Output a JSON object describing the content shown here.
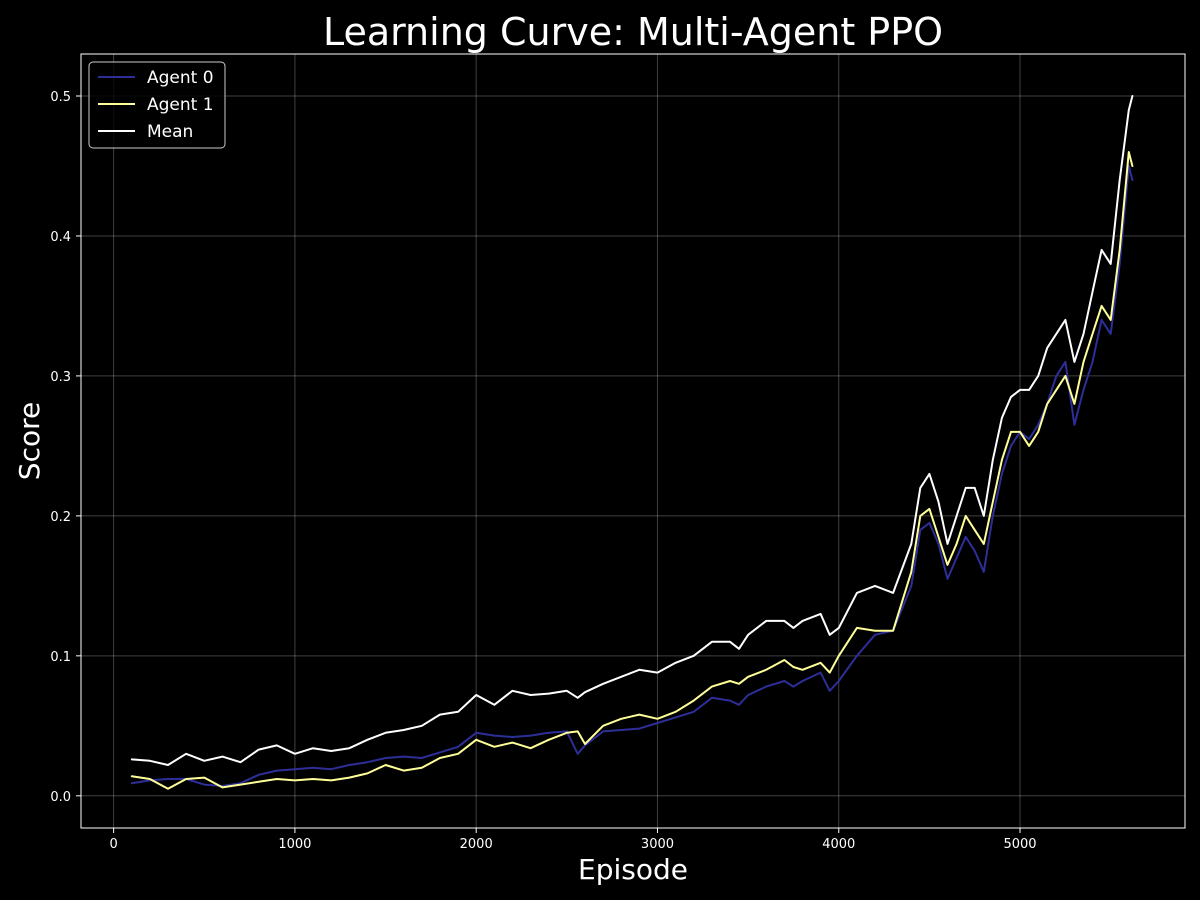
{
  "chart_data": {
    "type": "line",
    "title": "Learning Curve: Multi-Agent PPO",
    "xlabel": "Episode",
    "ylabel": "Score",
    "xlim": [
      -180,
      5910
    ],
    "ylim": [
      -0.023,
      0.53
    ],
    "xticks": [
      0,
      1000,
      2000,
      3000,
      4000,
      5000
    ],
    "xtick_labels": [
      "0",
      "1000",
      "2000",
      "3000",
      "4000",
      "5000"
    ],
    "yticks": [
      0.0,
      0.1,
      0.2,
      0.3,
      0.4,
      0.5
    ],
    "ytick_labels": [
      "0.0",
      "0.1",
      "0.2",
      "0.3",
      "0.4",
      "0.5"
    ],
    "grid": true,
    "legend_position": "top-left",
    "background": "#000000",
    "series": [
      {
        "name": "Agent 0",
        "color": "#2e2e99",
        "x": [
          100,
          200,
          300,
          400,
          500,
          600,
          700,
          800,
          900,
          1000,
          1100,
          1200,
          1300,
          1400,
          1500,
          1600,
          1700,
          1800,
          1900,
          2000,
          2100,
          2200,
          2300,
          2400,
          2500,
          2560,
          2600,
          2700,
          2800,
          2900,
          3000,
          3100,
          3200,
          3300,
          3400,
          3450,
          3500,
          3600,
          3700,
          3750,
          3800,
          3900,
          3950,
          4000,
          4100,
          4200,
          4300,
          4400,
          4450,
          4500,
          4550,
          4600,
          4650,
          4700,
          4750,
          4800,
          4850,
          4900,
          4950,
          5000,
          5050,
          5100,
          5150,
          5200,
          5250,
          5300,
          5350,
          5400,
          5450,
          5500,
          5550,
          5600,
          5620
        ],
        "y": [
          0.009,
          0.011,
          0.012,
          0.012,
          0.008,
          0.007,
          0.009,
          0.015,
          0.018,
          0.019,
          0.02,
          0.019,
          0.022,
          0.024,
          0.027,
          0.028,
          0.027,
          0.031,
          0.035,
          0.045,
          0.043,
          0.042,
          0.043,
          0.045,
          0.046,
          0.03,
          0.036,
          0.046,
          0.047,
          0.048,
          0.052,
          0.056,
          0.06,
          0.07,
          0.068,
          0.065,
          0.072,
          0.078,
          0.082,
          0.078,
          0.082,
          0.088,
          0.075,
          0.082,
          0.1,
          0.115,
          0.118,
          0.15,
          0.19,
          0.195,
          0.18,
          0.155,
          0.17,
          0.185,
          0.175,
          0.16,
          0.2,
          0.23,
          0.25,
          0.26,
          0.255,
          0.265,
          0.28,
          0.3,
          0.31,
          0.265,
          0.29,
          0.31,
          0.34,
          0.33,
          0.38,
          0.45,
          0.44
        ]
      },
      {
        "name": "Agent 1",
        "color": "#ffff99",
        "x": [
          100,
          200,
          300,
          400,
          500,
          600,
          700,
          800,
          900,
          1000,
          1100,
          1200,
          1300,
          1400,
          1500,
          1600,
          1700,
          1800,
          1900,
          2000,
          2100,
          2200,
          2300,
          2400,
          2500,
          2560,
          2600,
          2700,
          2800,
          2900,
          3000,
          3100,
          3200,
          3300,
          3400,
          3450,
          3500,
          3600,
          3700,
          3750,
          3800,
          3900,
          3950,
          4000,
          4100,
          4200,
          4300,
          4400,
          4450,
          4500,
          4550,
          4600,
          4650,
          4700,
          4750,
          4800,
          4850,
          4900,
          4950,
          5000,
          5050,
          5100,
          5150,
          5200,
          5250,
          5300,
          5350,
          5400,
          5450,
          5500,
          5550,
          5600,
          5620
        ],
        "y": [
          0.014,
          0.012,
          0.005,
          0.012,
          0.013,
          0.006,
          0.008,
          0.01,
          0.012,
          0.011,
          0.012,
          0.011,
          0.013,
          0.016,
          0.022,
          0.018,
          0.02,
          0.027,
          0.03,
          0.04,
          0.035,
          0.038,
          0.034,
          0.04,
          0.045,
          0.046,
          0.037,
          0.05,
          0.055,
          0.058,
          0.055,
          0.06,
          0.068,
          0.078,
          0.082,
          0.08,
          0.085,
          0.09,
          0.097,
          0.092,
          0.09,
          0.095,
          0.088,
          0.1,
          0.12,
          0.118,
          0.118,
          0.16,
          0.2,
          0.205,
          0.185,
          0.165,
          0.18,
          0.2,
          0.19,
          0.18,
          0.21,
          0.24,
          0.26,
          0.26,
          0.25,
          0.26,
          0.28,
          0.29,
          0.3,
          0.28,
          0.31,
          0.33,
          0.35,
          0.34,
          0.39,
          0.46,
          0.45
        ]
      },
      {
        "name": "Mean",
        "color": "#ffffff",
        "x": [
          100,
          200,
          300,
          400,
          500,
          600,
          700,
          800,
          900,
          1000,
          1100,
          1200,
          1300,
          1400,
          1500,
          1600,
          1700,
          1800,
          1900,
          2000,
          2100,
          2200,
          2300,
          2400,
          2500,
          2560,
          2600,
          2700,
          2800,
          2900,
          3000,
          3100,
          3200,
          3300,
          3400,
          3450,
          3500,
          3600,
          3700,
          3750,
          3800,
          3900,
          3950,
          4000,
          4100,
          4200,
          4300,
          4400,
          4450,
          4500,
          4550,
          4600,
          4650,
          4700,
          4750,
          4800,
          4850,
          4900,
          4950,
          5000,
          5050,
          5100,
          5150,
          5200,
          5250,
          5300,
          5350,
          5400,
          5450,
          5500,
          5550,
          5600,
          5620
        ],
        "y": [
          0.026,
          0.025,
          0.022,
          0.03,
          0.025,
          0.028,
          0.024,
          0.033,
          0.036,
          0.03,
          0.034,
          0.032,
          0.034,
          0.04,
          0.045,
          0.047,
          0.05,
          0.058,
          0.06,
          0.072,
          0.065,
          0.075,
          0.072,
          0.073,
          0.075,
          0.07,
          0.074,
          0.08,
          0.085,
          0.09,
          0.088,
          0.095,
          0.1,
          0.11,
          0.11,
          0.105,
          0.115,
          0.125,
          0.125,
          0.12,
          0.125,
          0.13,
          0.115,
          0.12,
          0.145,
          0.15,
          0.145,
          0.18,
          0.22,
          0.23,
          0.21,
          0.18,
          0.2,
          0.22,
          0.22,
          0.2,
          0.24,
          0.27,
          0.285,
          0.29,
          0.29,
          0.3,
          0.32,
          0.33,
          0.34,
          0.31,
          0.33,
          0.36,
          0.39,
          0.38,
          0.44,
          0.49,
          0.5
        ]
      }
    ]
  }
}
